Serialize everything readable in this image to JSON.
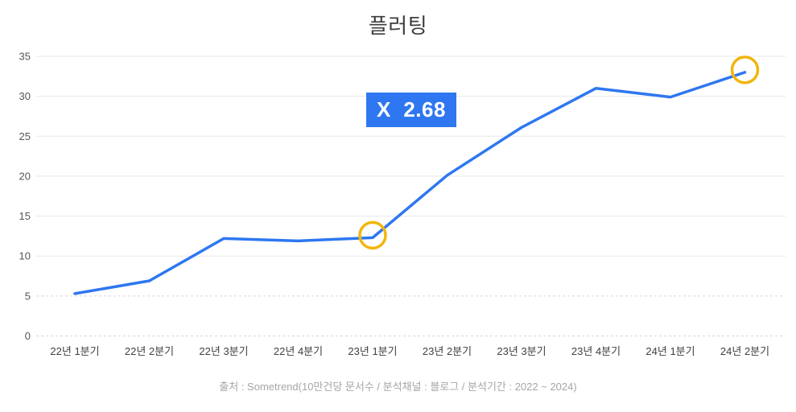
{
  "chart_data": {
    "type": "line",
    "title": "플러팅",
    "categories": [
      "22년 1분기",
      "22년 2분기",
      "22년 3분기",
      "22년 4분기",
      "23년 1분기",
      "23년 2분기",
      "23년 3분기",
      "23년 4분기",
      "24년 1분기",
      "24년 2분기"
    ],
    "values": [
      5.3,
      6.9,
      12.2,
      11.9,
      12.3,
      20.1,
      26.1,
      31.0,
      29.9,
      33.0
    ],
    "ylim": [
      0,
      35
    ],
    "yticks": [
      0,
      5,
      10,
      15,
      20,
      25,
      30,
      35
    ],
    "grid": true,
    "legend": false,
    "line_color": "#2E77F0",
    "highlight_color": "#F2B50D",
    "highlights": [
      {
        "category": "23년 1분기",
        "index": 4,
        "value": 12.3
      },
      {
        "category": "24년 2분기",
        "index": 9,
        "value": 33.0
      }
    ],
    "annotation": {
      "text": "X  2.68",
      "bg": "#2E77F0",
      "color": "#FFFFFF"
    }
  },
  "footer": {
    "source": "출처 : Sometrend(10만건당 문서수 / 분석채널 : 블로그 / 분석기간 : 2022 ~ 2024)"
  }
}
